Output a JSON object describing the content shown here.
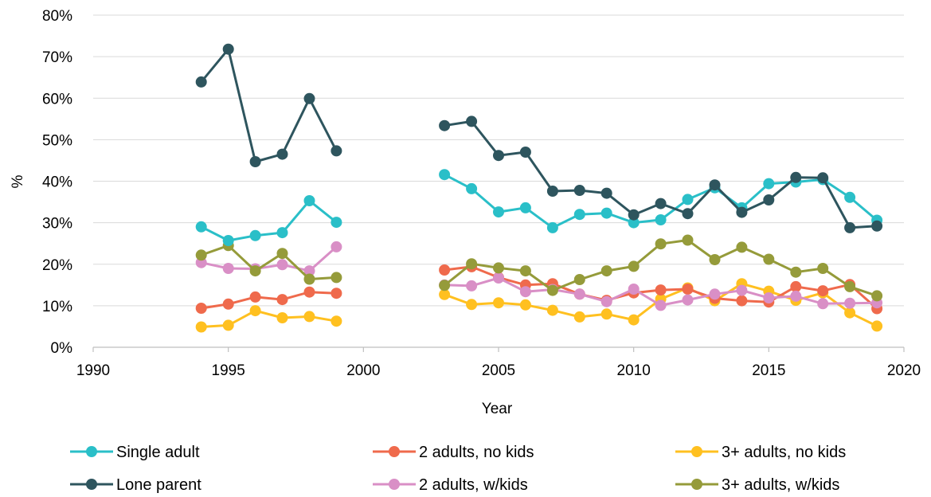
{
  "chart_data": {
    "type": "line",
    "xlabel": "Year",
    "ylabel": "%",
    "xlim": [
      1990,
      2020
    ],
    "ylim": [
      0,
      80
    ],
    "x_ticks": [
      1990,
      1995,
      2000,
      2005,
      2010,
      2015,
      2020
    ],
    "y_ticks": [
      0,
      10,
      20,
      30,
      40,
      50,
      60,
      70,
      80
    ],
    "y_tick_labels": [
      "0%",
      "10%",
      "20%",
      "30%",
      "40%",
      "50%",
      "60%",
      "70%",
      "80%"
    ],
    "grid": "horizontal",
    "legend_position": "bottom",
    "series": [
      {
        "name": "Single adult",
        "color": "#2ABFC8",
        "points": [
          [
            1994,
            29.0
          ],
          [
            1995,
            25.7
          ],
          [
            1996,
            26.9
          ],
          [
            1997,
            27.6
          ],
          [
            1998,
            35.3
          ],
          [
            1999,
            30.1
          ],
          [
            2003,
            41.6
          ],
          [
            2004,
            38.2
          ],
          [
            2005,
            32.6
          ],
          [
            2006,
            33.6
          ],
          [
            2007,
            28.8
          ],
          [
            2008,
            32.0
          ],
          [
            2009,
            32.3
          ],
          [
            2010,
            30.0
          ],
          [
            2011,
            30.7
          ],
          [
            2012,
            35.6
          ],
          [
            2013,
            38.4
          ],
          [
            2014,
            33.6
          ],
          [
            2015,
            39.4
          ],
          [
            2016,
            39.8
          ],
          [
            2017,
            40.4
          ],
          [
            2018,
            36.1
          ],
          [
            2019,
            30.6
          ]
        ]
      },
      {
        "name": "Lone parent",
        "color": "#2E555E",
        "points": [
          [
            1994,
            63.9
          ],
          [
            1995,
            71.8
          ],
          [
            1996,
            44.7
          ],
          [
            1997,
            46.5
          ],
          [
            1998,
            59.9
          ],
          [
            1999,
            47.3
          ],
          [
            2003,
            53.4
          ],
          [
            2004,
            54.4
          ],
          [
            2005,
            46.2
          ],
          [
            2006,
            47.0
          ],
          [
            2007,
            37.6
          ],
          [
            2008,
            37.8
          ],
          [
            2009,
            37.1
          ],
          [
            2010,
            31.9
          ],
          [
            2011,
            34.6
          ],
          [
            2012,
            32.2
          ],
          [
            2013,
            39.1
          ],
          [
            2014,
            32.5
          ],
          [
            2015,
            35.5
          ],
          [
            2016,
            40.9
          ],
          [
            2017,
            40.8
          ],
          [
            2018,
            28.8
          ],
          [
            2019,
            29.2
          ]
        ]
      },
      {
        "name": "2 adults, no kids",
        "color": "#EF6A4C",
        "points": [
          [
            1994,
            9.4
          ],
          [
            1995,
            10.4
          ],
          [
            1996,
            12.1
          ],
          [
            1997,
            11.5
          ],
          [
            1998,
            13.3
          ],
          [
            1999,
            13.0
          ],
          [
            2003,
            18.6
          ],
          [
            2004,
            19.4
          ],
          [
            2005,
            16.8
          ],
          [
            2006,
            15.0
          ],
          [
            2007,
            15.3
          ],
          [
            2008,
            12.8
          ],
          [
            2009,
            11.3
          ],
          [
            2010,
            13.1
          ],
          [
            2011,
            13.8
          ],
          [
            2012,
            14.0
          ],
          [
            2013,
            11.8
          ],
          [
            2014,
            11.2
          ],
          [
            2015,
            10.9
          ],
          [
            2016,
            14.6
          ],
          [
            2017,
            13.6
          ],
          [
            2018,
            15.1
          ],
          [
            2019,
            9.3
          ]
        ]
      },
      {
        "name": "2 adults, w/kids",
        "color": "#D98FC6",
        "points": [
          [
            1994,
            20.4
          ],
          [
            1995,
            19.0
          ],
          [
            1996,
            18.9
          ],
          [
            1997,
            19.9
          ],
          [
            1998,
            18.4
          ],
          [
            1999,
            24.2
          ],
          [
            2003,
            15.0
          ],
          [
            2004,
            14.8
          ],
          [
            2005,
            16.7
          ],
          [
            2006,
            13.4
          ],
          [
            2007,
            13.9
          ],
          [
            2008,
            12.8
          ],
          [
            2009,
            11.0
          ],
          [
            2010,
            14.0
          ],
          [
            2011,
            10.1
          ],
          [
            2012,
            11.4
          ],
          [
            2013,
            12.8
          ],
          [
            2014,
            13.7
          ],
          [
            2015,
            11.9
          ],
          [
            2016,
            12.3
          ],
          [
            2017,
            10.5
          ],
          [
            2018,
            10.6
          ],
          [
            2019,
            10.7
          ]
        ]
      },
      {
        "name": "3+ adults, no kids",
        "color": "#FFC020",
        "points": [
          [
            1994,
            4.9
          ],
          [
            1995,
            5.3
          ],
          [
            1996,
            8.8
          ],
          [
            1997,
            7.1
          ],
          [
            1998,
            7.4
          ],
          [
            1999,
            6.3
          ],
          [
            2003,
            12.7
          ],
          [
            2004,
            10.3
          ],
          [
            2005,
            10.7
          ],
          [
            2006,
            10.2
          ],
          [
            2007,
            8.9
          ],
          [
            2008,
            7.3
          ],
          [
            2009,
            8.0
          ],
          [
            2010,
            6.6
          ],
          [
            2011,
            11.6
          ],
          [
            2012,
            14.3
          ],
          [
            2013,
            11.2
          ],
          [
            2014,
            15.3
          ],
          [
            2015,
            13.5
          ],
          [
            2016,
            11.3
          ],
          [
            2017,
            13.1
          ],
          [
            2018,
            8.3
          ],
          [
            2019,
            5.1
          ]
        ]
      },
      {
        "name": "3+ adults, w/kids",
        "color": "#959B3A",
        "points": [
          [
            1994,
            22.2
          ],
          [
            1995,
            24.5
          ],
          [
            1996,
            18.4
          ],
          [
            1997,
            22.6
          ],
          [
            1998,
            16.4
          ],
          [
            1999,
            16.8
          ],
          [
            2003,
            14.9
          ],
          [
            2004,
            20.1
          ],
          [
            2005,
            19.1
          ],
          [
            2006,
            18.4
          ],
          [
            2007,
            13.7
          ],
          [
            2008,
            16.3
          ],
          [
            2009,
            18.4
          ],
          [
            2010,
            19.5
          ],
          [
            2011,
            24.9
          ],
          [
            2012,
            25.8
          ],
          [
            2013,
            21.1
          ],
          [
            2014,
            24.1
          ],
          [
            2015,
            21.2
          ],
          [
            2016,
            18.1
          ],
          [
            2017,
            19.0
          ],
          [
            2018,
            14.6
          ],
          [
            2019,
            12.4
          ]
        ]
      }
    ],
    "legend_order": [
      [
        "Single adult",
        "2 adults, no kids",
        "3+ adults, no kids"
      ],
      [
        "Lone parent",
        "2 adults, w/kids",
        "3+ adults, w/kids"
      ]
    ]
  }
}
